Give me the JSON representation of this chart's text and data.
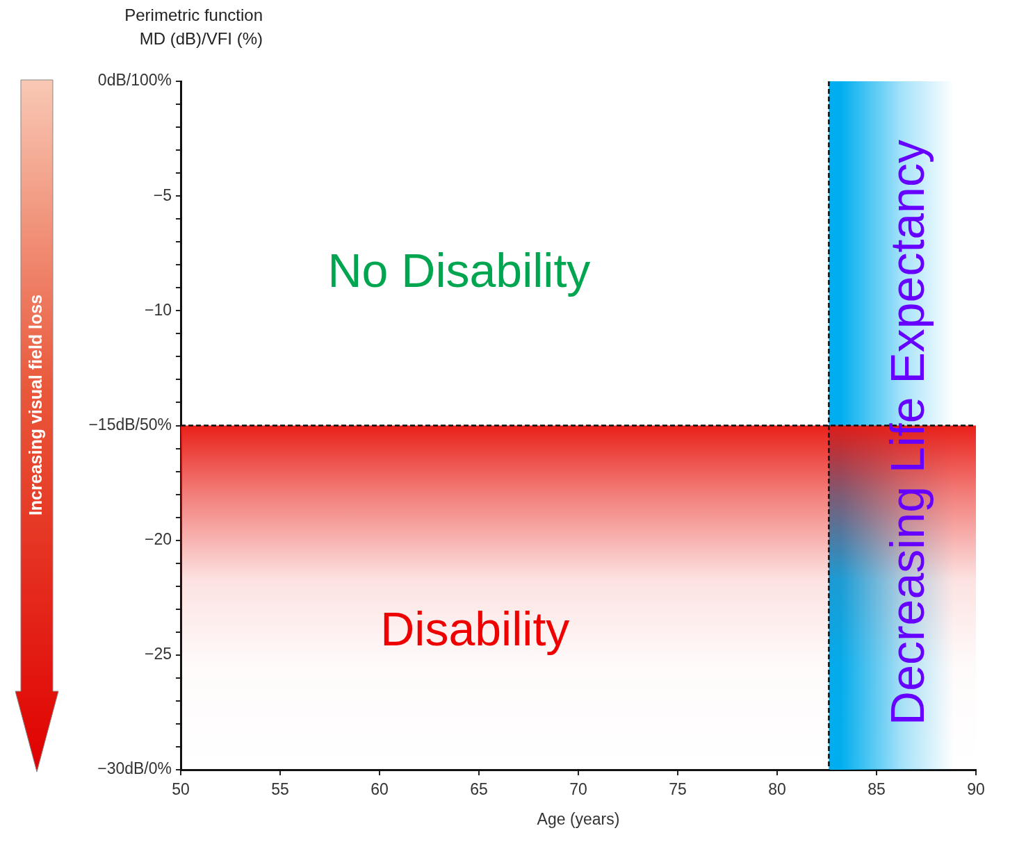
{
  "chart_data": {
    "type": "line",
    "xlabel": "Age (years)",
    "ylabel": "Perimetric function\nMD (dB)/VFI (%)",
    "xlim": [
      50,
      90
    ],
    "xticks": [
      50,
      55,
      60,
      65,
      70,
      75,
      80,
      85,
      90
    ],
    "ylim": [
      -30,
      0
    ],
    "yticks": [
      {
        "value": 0,
        "label": "0dB/100%"
      },
      {
        "value": -1,
        "label": null
      },
      {
        "value": -2,
        "label": null
      },
      {
        "value": -3,
        "label": null
      },
      {
        "value": -4,
        "label": null
      },
      {
        "value": -5,
        "label": "−5"
      },
      {
        "value": -6,
        "label": null
      },
      {
        "value": -7,
        "label": null
      },
      {
        "value": -8,
        "label": null
      },
      {
        "value": -9,
        "label": null
      },
      {
        "value": -10,
        "label": "−10"
      },
      {
        "value": -11,
        "label": null
      },
      {
        "value": -12,
        "label": null
      },
      {
        "value": -13,
        "label": null
      },
      {
        "value": -14,
        "label": null
      },
      {
        "value": -15,
        "label": "−15dB/50%"
      },
      {
        "value": -16,
        "label": null
      },
      {
        "value": -17,
        "label": null
      },
      {
        "value": -18,
        "label": null
      },
      {
        "value": -19,
        "label": null
      },
      {
        "value": -20,
        "label": "−20"
      },
      {
        "value": -21,
        "label": null
      },
      {
        "value": -22,
        "label": null
      },
      {
        "value": -23,
        "label": null
      },
      {
        "value": -24,
        "label": null
      },
      {
        "value": -25,
        "label": "−25"
      },
      {
        "value": -26,
        "label": null
      },
      {
        "value": -27,
        "label": null
      },
      {
        "value": -28,
        "label": null
      },
      {
        "value": -29,
        "label": null
      },
      {
        "value": -30,
        "label": "−30dB/0%"
      }
    ],
    "grid": false,
    "legend": false,
    "ref_lines": [
      {
        "axis": "y",
        "value": -15,
        "label": null,
        "color": "#111111",
        "line_style": "dashed"
      },
      {
        "axis": "x",
        "value": 82.6,
        "label": null,
        "color": "#111111",
        "line_style": "dashed"
      }
    ],
    "bands": [
      {
        "axis": "x",
        "from": 82.6,
        "to": 90,
        "label": "Decreasing Life Expectancy",
        "color": "#00aeef"
      },
      {
        "axis": "y",
        "from": -15,
        "to": -30,
        "label": "Disability",
        "color": "#e8150e"
      }
    ],
    "annotations": [
      "No Disability",
      "Increasing visual field loss"
    ]
  }
}
